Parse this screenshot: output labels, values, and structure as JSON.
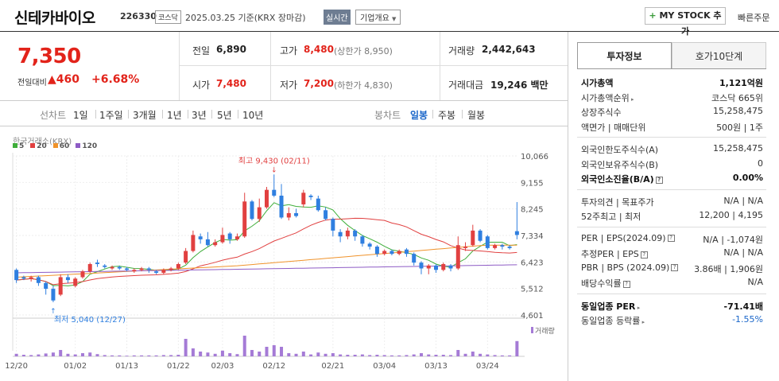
{
  "header": {
    "name": "신테카바이오",
    "code": "226330",
    "market": "코스닥",
    "asof": "2025.03.25 기준(KRX 장마감)",
    "realtime": "실시간",
    "company_info": "기업개요",
    "mystock": "MY STOCK 추가",
    "quick_order": "빠른주문"
  },
  "price": {
    "current": "7,350",
    "change_label": "전일대비",
    "change": "460",
    "change_pct": "+6.68%"
  },
  "quote": {
    "prev_label": "전일",
    "prev": "6,890",
    "high_label": "고가",
    "high": "8,480",
    "upper_limit": "(상한가 8,950)",
    "volume_label": "거래량",
    "volume": "2,442,643",
    "open_label": "시가",
    "open": "7,480",
    "low_label": "저가",
    "low": "7,200",
    "lower_limit": "(하한가 4,830)",
    "amount_label": "거래대금",
    "amount": "19,246",
    "amount_unit": "백만"
  },
  "periods": {
    "line_label": "선차트",
    "line": [
      "1일",
      "1주일",
      "3개월",
      "1년",
      "3년",
      "5년",
      "10년"
    ],
    "candle_label": "봉차트",
    "candle": [
      "일봉",
      "주봉",
      "월봉"
    ],
    "selected": "일봉"
  },
  "chart_legend": {
    "exchange": "한국거래소(KRX)",
    "ma": [
      {
        "label": "5",
        "color": "#3fae3a"
      },
      {
        "label": "20",
        "color": "#e14040"
      },
      {
        "label": "60",
        "color": "#f0932b"
      },
      {
        "label": "120",
        "color": "#8e5cc5"
      }
    ],
    "volume_label": "거래량"
  },
  "chart_data": {
    "type": "candlestick",
    "y_ticks": [
      "10,066",
      "9,155",
      "8,245",
      "7,334",
      "6,423",
      "5,512",
      "4,601"
    ],
    "ylim": [
      4601,
      10066
    ],
    "x_ticks": [
      "12/20",
      "01/02",
      "01/13",
      "01/22",
      "02/03",
      "02/12",
      "02/21",
      "03/04",
      "03/13",
      "03/24"
    ],
    "high_annotation": "최고 9,430 (02/11)",
    "low_annotation": "최저 5,040 (12/27)",
    "candles": [
      {
        "o": 6150,
        "c": 5800,
        "h": 6200,
        "l": 5700,
        "v": 0.08
      },
      {
        "o": 5900,
        "c": 5850,
        "h": 5950,
        "l": 5800,
        "v": 0.05
      },
      {
        "o": 5850,
        "c": 5900,
        "h": 5950,
        "l": 5750,
        "v": 0.04
      },
      {
        "o": 5900,
        "c": 5700,
        "h": 5950,
        "l": 5600,
        "v": 0.06
      },
      {
        "o": 5700,
        "c": 5500,
        "h": 5750,
        "l": 5300,
        "v": 0.09
      },
      {
        "o": 5500,
        "c": 5100,
        "h": 5600,
        "l": 5040,
        "v": 0.12
      },
      {
        "o": 5300,
        "c": 5900,
        "h": 6000,
        "l": 5250,
        "v": 0.2
      },
      {
        "o": 5900,
        "c": 5800,
        "h": 6000,
        "l": 5700,
        "v": 0.08
      },
      {
        "o": 5600,
        "c": 5850,
        "h": 5900,
        "l": 5550,
        "v": 0.06
      },
      {
        "o": 5900,
        "c": 6100,
        "h": 6150,
        "l": 5850,
        "v": 0.1
      },
      {
        "o": 6100,
        "c": 6350,
        "h": 6400,
        "l": 6050,
        "v": 0.12
      },
      {
        "o": 6400,
        "c": 6350,
        "h": 6500,
        "l": 6250,
        "v": 0.07
      },
      {
        "o": 6300,
        "c": 6250,
        "h": 6350,
        "l": 6200,
        "v": 0.04
      },
      {
        "o": 6200,
        "c": 6250,
        "h": 6300,
        "l": 6150,
        "v": 0.03
      },
      {
        "o": 6250,
        "c": 6200,
        "h": 6300,
        "l": 6150,
        "v": 0.03
      },
      {
        "o": 6200,
        "c": 6150,
        "h": 6250,
        "l": 6100,
        "v": 0.02
      },
      {
        "o": 6100,
        "c": 6150,
        "h": 6200,
        "l": 6050,
        "v": 0.03
      },
      {
        "o": 6150,
        "c": 6200,
        "h": 6250,
        "l": 6100,
        "v": 0.03
      },
      {
        "o": 6200,
        "c": 6150,
        "h": 6250,
        "l": 6050,
        "v": 0.03
      },
      {
        "o": 6100,
        "c": 6050,
        "h": 6150,
        "l": 6000,
        "v": 0.03
      },
      {
        "o": 6050,
        "c": 6150,
        "h": 6200,
        "l": 6000,
        "v": 0.04
      },
      {
        "o": 6150,
        "c": 6200,
        "h": 6250,
        "l": 6100,
        "v": 0.04
      },
      {
        "o": 6200,
        "c": 6350,
        "h": 6400,
        "l": 6150,
        "v": 0.05
      },
      {
        "o": 6400,
        "c": 6800,
        "h": 6900,
        "l": 6350,
        "v": 0.55
      },
      {
        "o": 6800,
        "c": 7350,
        "h": 7500,
        "l": 6750,
        "v": 0.25
      },
      {
        "o": 7300,
        "c": 7200,
        "h": 7400,
        "l": 7050,
        "v": 0.15
      },
      {
        "o": 7200,
        "c": 7000,
        "h": 7450,
        "l": 6950,
        "v": 0.12
      },
      {
        "o": 7000,
        "c": 7100,
        "h": 7200,
        "l": 6950,
        "v": 0.08
      },
      {
        "o": 7100,
        "c": 7350,
        "h": 7600,
        "l": 7050,
        "v": 0.18
      },
      {
        "o": 7400,
        "c": 7200,
        "h": 7450,
        "l": 7050,
        "v": 0.1
      },
      {
        "o": 7200,
        "c": 7300,
        "h": 7400,
        "l": 7150,
        "v": 0.07
      },
      {
        "o": 7300,
        "c": 8500,
        "h": 8800,
        "l": 7250,
        "v": 0.65
      },
      {
        "o": 8500,
        "c": 7900,
        "h": 8550,
        "l": 7850,
        "v": 0.2
      },
      {
        "o": 7900,
        "c": 8300,
        "h": 8600,
        "l": 7800,
        "v": 0.15
      },
      {
        "o": 8300,
        "c": 8900,
        "h": 9000,
        "l": 8250,
        "v": 0.3
      },
      {
        "o": 8900,
        "c": 8700,
        "h": 9430,
        "l": 8650,
        "v": 0.35
      },
      {
        "o": 8700,
        "c": 7950,
        "h": 9100,
        "l": 7900,
        "v": 0.3
      },
      {
        "o": 7950,
        "c": 8100,
        "h": 8300,
        "l": 7850,
        "v": 0.1
      },
      {
        "o": 8100,
        "c": 8000,
        "h": 8250,
        "l": 7950,
        "v": 0.08
      },
      {
        "o": 8400,
        "c": 8800,
        "h": 8900,
        "l": 8300,
        "v": 0.15
      },
      {
        "o": 8700,
        "c": 8650,
        "h": 8750,
        "l": 8550,
        "v": 0.06
      },
      {
        "o": 8600,
        "c": 8200,
        "h": 8700,
        "l": 8150,
        "v": 0.12
      },
      {
        "o": 8200,
        "c": 7900,
        "h": 8300,
        "l": 7850,
        "v": 0.08
      },
      {
        "o": 7900,
        "c": 7500,
        "h": 7950,
        "l": 7300,
        "v": 0.1
      },
      {
        "o": 7450,
        "c": 7300,
        "h": 7550,
        "l": 7100,
        "v": 0.06
      },
      {
        "o": 7300,
        "c": 7500,
        "h": 7600,
        "l": 7200,
        "v": 0.05
      },
      {
        "o": 7500,
        "c": 7300,
        "h": 7550,
        "l": 7150,
        "v": 0.05
      },
      {
        "o": 7300,
        "c": 7050,
        "h": 7350,
        "l": 6950,
        "v": 0.06
      },
      {
        "o": 7050,
        "c": 6950,
        "h": 7100,
        "l": 6850,
        "v": 0.04
      },
      {
        "o": 6950,
        "c": 6700,
        "h": 7000,
        "l": 6600,
        "v": 0.05
      },
      {
        "o": 6700,
        "c": 6800,
        "h": 6850,
        "l": 6650,
        "v": 0.04
      },
      {
        "o": 6800,
        "c": 6700,
        "h": 6850,
        "l": 6650,
        "v": 0.03
      },
      {
        "o": 6700,
        "c": 6800,
        "h": 6850,
        "l": 6650,
        "v": 0.03
      },
      {
        "o": 6850,
        "c": 6700,
        "h": 6900,
        "l": 6600,
        "v": 0.04
      },
      {
        "o": 6700,
        "c": 6400,
        "h": 6750,
        "l": 6300,
        "v": 0.06
      },
      {
        "o": 6400,
        "c": 6200,
        "h": 6450,
        "l": 6000,
        "v": 0.1
      },
      {
        "o": 6200,
        "c": 6300,
        "h": 6350,
        "l": 6000,
        "v": 0.06
      },
      {
        "o": 6300,
        "c": 6150,
        "h": 6350,
        "l": 6050,
        "v": 0.05
      },
      {
        "o": 6150,
        "c": 6350,
        "h": 6400,
        "l": 6100,
        "v": 0.05
      },
      {
        "o": 6300,
        "c": 6200,
        "h": 6350,
        "l": 6100,
        "v": 0.04
      },
      {
        "o": 6200,
        "c": 7000,
        "h": 7300,
        "l": 6150,
        "v": 0.2
      },
      {
        "o": 6900,
        "c": 6950,
        "h": 7100,
        "l": 6800,
        "v": 0.08
      },
      {
        "o": 7000,
        "c": 7500,
        "h": 7700,
        "l": 6950,
        "v": 0.15
      },
      {
        "o": 7500,
        "c": 7150,
        "h": 7550,
        "l": 7100,
        "v": 0.08
      },
      {
        "o": 7300,
        "c": 6900,
        "h": 7350,
        "l": 6850,
        "v": 0.06
      },
      {
        "o": 6900,
        "c": 7000,
        "h": 7050,
        "l": 6850,
        "v": 0.04
      },
      {
        "o": 7000,
        "c": 6950,
        "h": 7050,
        "l": 6850,
        "v": 0.03
      },
      {
        "o": 6950,
        "c": 6900,
        "h": 7000,
        "l": 6850,
        "v": 0.03
      },
      {
        "o": 7480,
        "c": 7350,
        "h": 8480,
        "l": 7200,
        "v": 0.48
      }
    ]
  },
  "invest": {
    "tab_active": "투자정보",
    "tab_other": "호가10단계",
    "groups": [
      [
        {
          "label": "시가총액",
          "value": "1,121억원",
          "bold": true
        },
        {
          "label": "시가총액순위",
          "value": "코스닥 665위",
          "arrow": true
        },
        {
          "label": "상장주식수",
          "value": "15,258,475"
        },
        {
          "label": "액면가 | 매매단위",
          "value": "500원 | 1주"
        }
      ],
      [
        {
          "label": "외국인한도주식수(A)",
          "value": "15,258,475"
        },
        {
          "label": "외국인보유주식수(B)",
          "value": "0"
        },
        {
          "label": "외국인소진율(B/A)",
          "value": "0.00%",
          "bold": true,
          "info": true
        }
      ],
      [
        {
          "label": "투자의견 | 목표주가",
          "value": "N/A | N/A"
        },
        {
          "label": "52주최고 | 최저",
          "value": "12,200 | 4,195"
        }
      ],
      [
        {
          "label": "PER | EPS(2024.09)",
          "value": "N/A | -1,074원",
          "info": true
        },
        {
          "label": "추정PER | EPS",
          "value": "N/A | N/A",
          "info": true
        },
        {
          "label": "PBR | BPS (2024.09)",
          "value": "3.86배 | 1,906원",
          "info": true
        },
        {
          "label": "배당수익률",
          "value": "N/A",
          "info": true
        }
      ],
      [
        {
          "label": "동일업종 PER",
          "value": "-71.41배",
          "bold": true,
          "arrow": true
        },
        {
          "label": "동일업종 등락률",
          "value": "-1.55%",
          "arrow": true,
          "blue": true
        }
      ]
    ]
  }
}
